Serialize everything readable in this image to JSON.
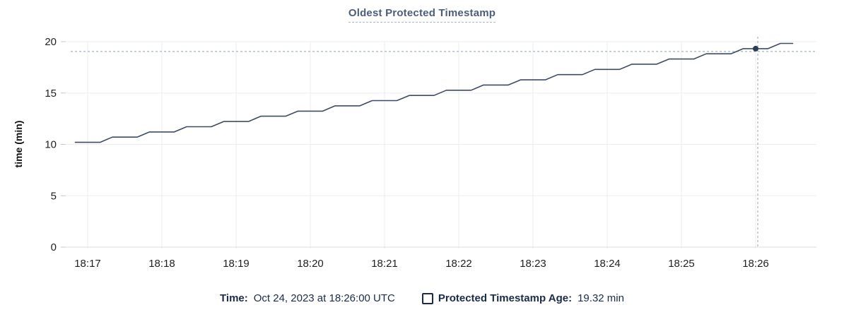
{
  "title": "Oldest Protected Timestamp",
  "y_axis": {
    "title": "time (min)",
    "ticks": [
      0,
      5,
      10,
      15,
      20
    ]
  },
  "x_axis": {
    "ticks": [
      "18:17",
      "18:18",
      "18:19",
      "18:20",
      "18:21",
      "18:22",
      "18:23",
      "18:24",
      "18:25",
      "18:26"
    ]
  },
  "legend": {
    "time_label": "Time:",
    "time_value": "Oct 24, 2023 at 18:26:00 UTC",
    "series_label": "Protected Timestamp Age:",
    "series_value": "19.32 min"
  },
  "colors": {
    "line": "#3e4c63",
    "dot": "#2d3d56",
    "grid": "#ededed",
    "grid_zero": "#dcdcdc",
    "tick": "#c9c9c9",
    "axis_text": "#1f1f1f",
    "crosshair": "#a3b4c2",
    "title_text": "#4c5e7c",
    "legend_text": "#1b2b4b"
  },
  "chart_data": {
    "type": "line",
    "title": "Oldest Protected Timestamp",
    "xlabel": "",
    "ylabel": "time (min)",
    "ylim": [
      0,
      20
    ],
    "x_tick_labels": [
      "18:17",
      "18:18",
      "18:19",
      "18:20",
      "18:21",
      "18:22",
      "18:23",
      "18:24",
      "18:25",
      "18:26"
    ],
    "grid": true,
    "legend_position": "bottom",
    "crosshair": {
      "time": "18:26:00",
      "value": 19.32
    },
    "series": [
      {
        "name": "Protected Timestamp Age",
        "points": [
          [
            "18:16:50",
            10.2
          ],
          [
            "18:17:00",
            10.2
          ],
          [
            "18:17:10",
            10.2
          ],
          [
            "18:17:20",
            10.71
          ],
          [
            "18:17:30",
            10.71
          ],
          [
            "18:17:40",
            10.71
          ],
          [
            "18:17:50",
            11.21
          ],
          [
            "18:18:00",
            11.21
          ],
          [
            "18:18:10",
            11.21
          ],
          [
            "18:18:20",
            11.72
          ],
          [
            "18:18:30",
            11.72
          ],
          [
            "18:18:40",
            11.72
          ],
          [
            "18:18:50",
            12.23
          ],
          [
            "18:19:00",
            12.23
          ],
          [
            "18:19:10",
            12.23
          ],
          [
            "18:19:20",
            12.74
          ],
          [
            "18:19:30",
            12.74
          ],
          [
            "18:19:40",
            12.74
          ],
          [
            "18:19:50",
            13.24
          ],
          [
            "18:20:00",
            13.24
          ],
          [
            "18:20:10",
            13.24
          ],
          [
            "18:20:20",
            13.75
          ],
          [
            "18:20:30",
            13.75
          ],
          [
            "18:20:40",
            13.75
          ],
          [
            "18:20:50",
            14.26
          ],
          [
            "18:21:00",
            14.26
          ],
          [
            "18:21:10",
            14.26
          ],
          [
            "18:21:20",
            14.76
          ],
          [
            "18:21:30",
            14.76
          ],
          [
            "18:21:40",
            14.76
          ],
          [
            "18:21:50",
            15.27
          ],
          [
            "18:22:00",
            15.27
          ],
          [
            "18:22:10",
            15.27
          ],
          [
            "18:22:20",
            15.78
          ],
          [
            "18:22:30",
            15.78
          ],
          [
            "18:22:40",
            15.78
          ],
          [
            "18:22:50",
            16.28
          ],
          [
            "18:23:00",
            16.28
          ],
          [
            "18:23:10",
            16.28
          ],
          [
            "18:23:20",
            16.79
          ],
          [
            "18:23:30",
            16.79
          ],
          [
            "18:23:40",
            16.79
          ],
          [
            "18:23:50",
            17.3
          ],
          [
            "18:24:00",
            17.3
          ],
          [
            "18:24:10",
            17.3
          ],
          [
            "18:24:20",
            17.81
          ],
          [
            "18:24:30",
            17.81
          ],
          [
            "18:24:40",
            17.81
          ],
          [
            "18:24:50",
            18.31
          ],
          [
            "18:25:00",
            18.31
          ],
          [
            "18:25:10",
            18.31
          ],
          [
            "18:25:20",
            18.82
          ],
          [
            "18:25:30",
            18.82
          ],
          [
            "18:25:40",
            18.82
          ],
          [
            "18:25:50",
            19.32
          ],
          [
            "18:26:00",
            19.32
          ],
          [
            "18:26:10",
            19.32
          ],
          [
            "18:26:20",
            19.83
          ],
          [
            "18:26:30",
            19.83
          ]
        ]
      }
    ]
  }
}
